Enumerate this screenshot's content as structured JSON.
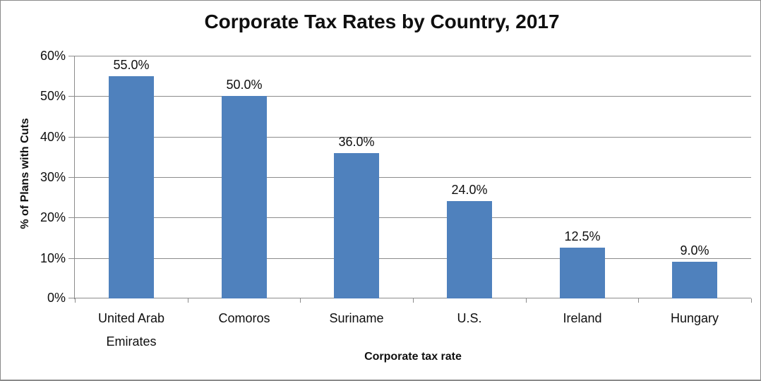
{
  "window": {
    "background": "#ffffff",
    "border_color": "#8a8a8a"
  },
  "chart_data": {
    "type": "bar",
    "title": "Corporate Tax Rates by Country, 2017",
    "categories": [
      "United Arab Emirates",
      "Comoros",
      "Suriname",
      "U.S.",
      "Ireland",
      "Hungary"
    ],
    "values": [
      55.0,
      50.0,
      36.0,
      24.0,
      12.5,
      9.0
    ],
    "value_labels": [
      "55.0%",
      "50.0%",
      "36.0%",
      "24.0%",
      "12.5%",
      "9.0%"
    ],
    "xlabel": "Corporate tax rate",
    "ylabel": "% of Plans with Cuts",
    "ylim": [
      0,
      60
    ],
    "ytick_step": 10,
    "ytick_labels": [
      "0%",
      "10%",
      "20%",
      "30%",
      "40%",
      "50%",
      "60%"
    ],
    "grid": true,
    "legend": "none",
    "colors": {
      "bar": "#4F81BD",
      "gridline": "#8c8c8c",
      "axis": "#8c8c8c",
      "text": "#0f0f0f"
    }
  }
}
